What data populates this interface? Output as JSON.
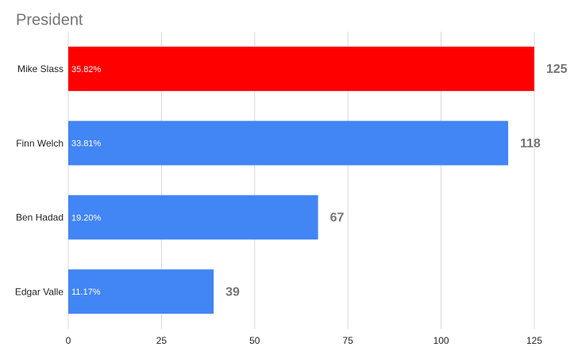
{
  "chart_data": {
    "type": "bar",
    "orientation": "horizontal",
    "title": "President",
    "categories": [
      "Mike Slass",
      "Finn Welch",
      "Ben Hadad",
      "Edgar Valle"
    ],
    "values": [
      125,
      118,
      67,
      39
    ],
    "share_labels": [
      "35.82%",
      "33.81%",
      "19.20%",
      "11.17%"
    ],
    "colors": [
      "#ff0000",
      "#4285f4",
      "#4285f4",
      "#4285f4"
    ],
    "xlim": [
      0,
      125
    ],
    "xticks": [
      0,
      25,
      50,
      75,
      100,
      125
    ],
    "grid": true
  }
}
